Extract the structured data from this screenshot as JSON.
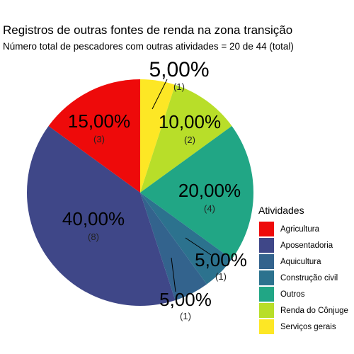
{
  "chart_data": {
    "type": "pie",
    "title": "Registros de outras fontes de renda na zona transição",
    "subtitle": "Número total de pescadores com outras atividades = 20 de 44 (total)",
    "legend_title": "Atividades",
    "legend_position": "right",
    "slices": [
      {
        "label": "Serviços gerais",
        "value": 1,
        "pct_label": "5,00%",
        "count_label": "(1)",
        "color": "#FDE725"
      },
      {
        "label": "Renda do Cônjuge",
        "value": 2,
        "pct_label": "10,00%",
        "count_label": "(2)",
        "color": "#B8DE29"
      },
      {
        "label": "Outros",
        "value": 4,
        "pct_label": "20,00%",
        "count_label": "(4)",
        "color": "#21A685"
      },
      {
        "label": "Construção civil",
        "value": 1,
        "pct_label": "5,00%",
        "count_label": "(1)",
        "color": "#2C728E"
      },
      {
        "label": "Aquicultura",
        "value": 1,
        "pct_label": "5,00%",
        "count_label": "(1)",
        "color": "#33638D"
      },
      {
        "label": "Aposentadoria",
        "value": 8,
        "pct_label": "40,00%",
        "count_label": "(8)",
        "color": "#3F4788"
      },
      {
        "label": "Agricultura",
        "value": 3,
        "pct_label": "15,00%",
        "count_label": "(3)",
        "color": "#EE0A0A"
      }
    ],
    "legend_order": [
      "Agricultura",
      "Aposentadoria",
      "Aquicultura",
      "Construção civil",
      "Outros",
      "Renda do Cônjuge",
      "Serviços gerais"
    ]
  }
}
